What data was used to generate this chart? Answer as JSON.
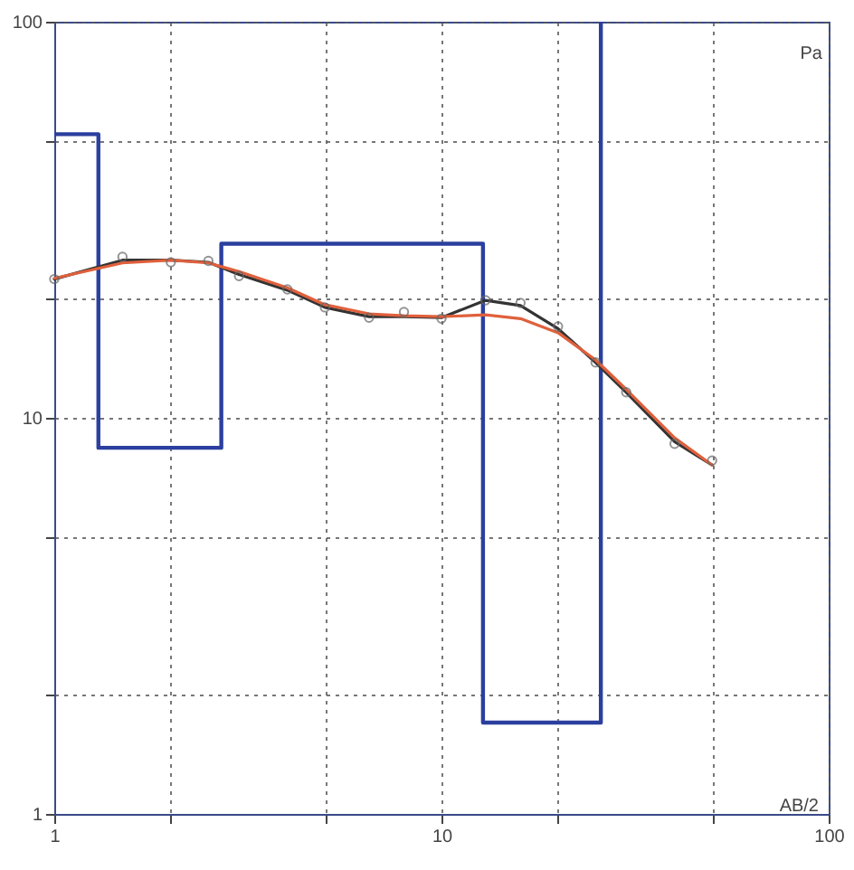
{
  "chart_data": {
    "type": "line",
    "xlabel": "AB/2",
    "ylabel": "Pa",
    "log": "xy",
    "grid": true,
    "line_style": "solid",
    "xlim": [
      1,
      100
    ],
    "ylim": [
      1,
      100
    ],
    "xticks": [
      1,
      {
        "value": 2,
        "label": null
      },
      {
        "value": 5,
        "label": null
      },
      10,
      {
        "value": 20,
        "label": null
      },
      {
        "value": 50,
        "label": null
      },
      100
    ],
    "yticks": [
      1,
      {
        "value": 2,
        "label": null
      },
      {
        "value": 5,
        "label": null
      },
      10,
      {
        "value": 20,
        "label": null
      },
      {
        "value": 50,
        "label": null
      },
      100
    ],
    "x": [
      1,
      1.5,
      2,
      2.5,
      3,
      4,
      5,
      6.5,
      8,
      10,
      13,
      16,
      20,
      25,
      30,
      40,
      50
    ],
    "series": [
      {
        "type": "step",
        "color": "#2b3f9e",
        "x": [
          1,
          1.3,
          2.7,
          12.8,
          25.8
        ],
        "values": [
          52,
          8.4,
          27.5,
          1.7,
          100
        ]
      },
      {
        "color": "#333333",
        "values": [
          22.4,
          25,
          25,
          24.7,
          23,
          21,
          19,
          18,
          18,
          17.9,
          19.8,
          19.2,
          16.8,
          13.8,
          11.6,
          8.7,
          7.6
        ]
      },
      {
        "color": "#e0603c",
        "values": [
          22.5,
          24.6,
          25,
          24.6,
          23.4,
          21.3,
          19.3,
          18.3,
          18.1,
          18,
          18.2,
          17.8,
          16.4,
          14,
          11.8,
          8.9,
          7.6
        ]
      },
      {
        "type": "scatter",
        "color": "#666666",
        "values": [
          22.4,
          25.5,
          24.7,
          24.9,
          22.8,
          21.1,
          19,
          17.9,
          18.5,
          17.8,
          19.8,
          19.5,
          17,
          13.8,
          11.6,
          8.6,
          7.8
        ]
      }
    ]
  }
}
